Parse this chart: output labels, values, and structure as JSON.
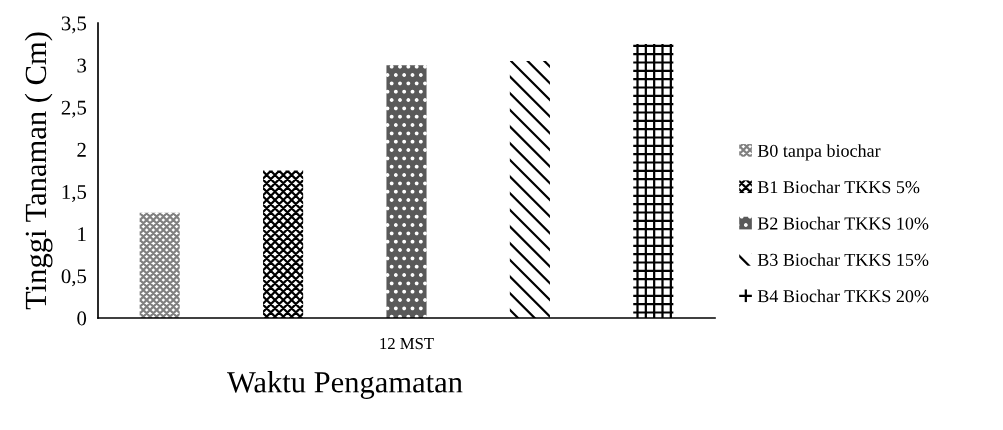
{
  "chart_data": {
    "type": "bar",
    "categories": [
      "12 MST"
    ],
    "xlabel": "Waktu Pengamatan",
    "ylabel": "Tinggi Tanaman ( Cm)",
    "series": [
      {
        "name": "B0 tanpa biochar",
        "color": "#808080",
        "values": [
          1.25
        ]
      },
      {
        "name": "B1 Biochar TKKS 5%",
        "color": "#000000",
        "values": [
          1.75
        ]
      },
      {
        "name": "B2 Biochar TKKS 10%",
        "color": "#595959",
        "values": [
          3.0
        ]
      },
      {
        "name": "B3 Biochar TKKS 15%",
        "color": "#000000",
        "values": [
          3.05
        ]
      },
      {
        "name": "B4 Biochar TKKS 20%",
        "color": "#000000",
        "values": [
          3.25
        ]
      }
    ],
    "ylim": [
      0,
      3.5
    ],
    "yticks": [
      {
        "value": 0,
        "label": "0"
      },
      {
        "value": 0.5,
        "label": "0,5"
      },
      {
        "value": 1,
        "label": "1"
      },
      {
        "value": 1.5,
        "label": "1,5"
      },
      {
        "value": 2,
        "label": "2"
      },
      {
        "value": 2.5,
        "label": "2,5"
      },
      {
        "value": 3,
        "label": "3"
      },
      {
        "value": 3.5,
        "label": "3,5"
      }
    ],
    "grid": false,
    "legend": "right"
  }
}
